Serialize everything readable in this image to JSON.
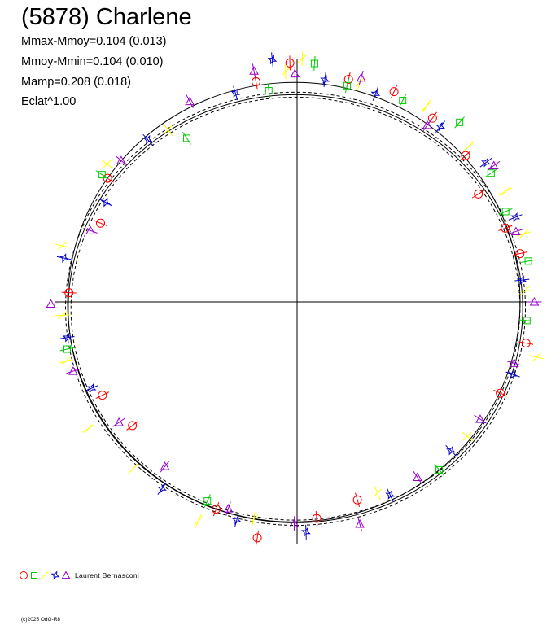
{
  "title": "(5878) Charlene",
  "stats": [
    "Mmax-Mmoy=0.104 (0.013)",
    "Mmoy-Mmin=0.104 (0.010)",
    "Mamp=0.208 (0.018)",
    "Eclat^1.00"
  ],
  "legend": {
    "author": "Laurent Bernasconi",
    "symbols": [
      {
        "shape": "circle",
        "color": "#ff0000"
      },
      {
        "shape": "square",
        "color": "#00cc00"
      },
      {
        "shape": "lightning",
        "color": "#ffff00"
      },
      {
        "shape": "star",
        "color": "#0000cc"
      },
      {
        "shape": "triangle",
        "color": "#9900cc"
      }
    ]
  },
  "footer": "(c)2025 OdG-R8",
  "chart_data": {
    "type": "scatter",
    "coordinate_system": "polar-phase",
    "grid": false,
    "mean_radius": 1.0,
    "model_curves": [
      "solid",
      "dashed-inner",
      "dashed-outer",
      "solid-reference-circle"
    ],
    "series": [
      {
        "shape": "circle",
        "color": "#ff0000",
        "points": [
          [
            0.22,
            1.02
          ],
          [
            0.35,
            0.99
          ],
          [
            0.55,
            0.95
          ],
          [
            0.73,
            1.01
          ],
          [
            0.95,
            1.04
          ],
          [
            1.15,
            1.06
          ],
          [
            1.35,
            1.05
          ],
          [
            1.6,
            1.1
          ],
          [
            1.75,
            1.03
          ],
          [
            2.55,
            1.02
          ],
          [
            2.75,
            0.95
          ],
          [
            3.1,
            1.02
          ],
          [
            3.6,
            0.97
          ],
          [
            3.8,
            0.93
          ],
          [
            4.35,
            1.02
          ],
          [
            4.55,
            1.1
          ],
          [
            4.8,
            1.0
          ],
          [
            5.0,
            0.95
          ],
          [
            5.85,
            1.0
          ],
          [
            6.1,
            1.04
          ]
        ]
      },
      {
        "shape": "square",
        "color": "#00cc00",
        "points": [
          [
            0.18,
            1.05
          ],
          [
            0.42,
            1.02
          ],
          [
            0.6,
            1.05
          ],
          [
            0.85,
            1.1
          ],
          [
            1.1,
            1.04
          ],
          [
            1.35,
            1.02
          ],
          [
            1.5,
            1.1
          ],
          [
            1.7,
            0.98
          ],
          [
            2.15,
            0.9
          ],
          [
            2.55,
            1.05
          ],
          [
            3.35,
            1.05
          ],
          [
            4.3,
            1.0
          ],
          [
            5.4,
            1.0
          ],
          [
            6.2,
            1.03
          ]
        ]
      },
      {
        "shape": "lightning",
        "color": "#ffff00",
        "points": [
          [
            0.05,
            1.02
          ],
          [
            0.3,
            1.06
          ],
          [
            0.5,
            1.06
          ],
          [
            0.75,
            1.05
          ],
          [
            1.0,
            1.07
          ],
          [
            1.3,
            1.05
          ],
          [
            1.55,
            1.12
          ],
          [
            1.62,
            1.06
          ],
          [
            2.2,
            0.98
          ],
          [
            2.5,
            1.06
          ],
          [
            2.9,
            1.08
          ],
          [
            3.2,
            1.05
          ],
          [
            3.4,
            1.07
          ],
          [
            3.7,
            1.1
          ],
          [
            3.95,
            1.06
          ],
          [
            4.3,
            1.1
          ],
          [
            4.52,
            1.02
          ],
          [
            5.1,
            0.95
          ],
          [
            5.6,
            0.98
          ],
          [
            6.05,
            1.1
          ]
        ]
      },
      {
        "shape": "star",
        "color": "#0000cc",
        "points": [
          [
            0.1,
            1.01
          ],
          [
            0.38,
            1.05
          ],
          [
            0.65,
            1.06
          ],
          [
            0.9,
            1.03
          ],
          [
            1.22,
            1.02
          ],
          [
            1.45,
            1.03
          ],
          [
            1.67,
            1.12
          ],
          [
            1.85,
            1.0
          ],
          [
            2.3,
            1.0
          ],
          [
            2.65,
            0.97
          ],
          [
            2.95,
            1.06
          ],
          [
            3.3,
            1.04
          ],
          [
            3.55,
            1.0
          ],
          [
            4.1,
            1.05
          ],
          [
            4.45,
            1.04
          ],
          [
            4.75,
            1.06
          ],
          [
            5.15,
            0.98
          ],
          [
            5.5,
            0.97
          ],
          [
            5.95,
            1.02
          ]
        ]
      },
      {
        "shape": "triangle",
        "color": "#9900cc",
        "points": [
          [
            0.0,
            1.06
          ],
          [
            0.32,
            1.03
          ],
          [
            0.62,
            1.08
          ],
          [
            0.95,
            1.0
          ],
          [
            1.3,
            1.07
          ],
          [
            1.58,
            1.05
          ],
          [
            1.75,
            1.08
          ],
          [
            2.05,
            1.04
          ],
          [
            2.45,
            1.02
          ],
          [
            2.8,
            0.98
          ],
          [
            3.15,
            1.1
          ],
          [
            3.45,
            1.05
          ],
          [
            3.75,
            0.97
          ],
          [
            4.05,
            0.96
          ],
          [
            4.4,
            1.0
          ],
          [
            4.7,
            1.02
          ],
          [
            4.98,
            1.06
          ],
          [
            5.3,
            0.97
          ],
          [
            5.7,
            0.98
          ],
          [
            6.0,
            1.01
          ]
        ]
      }
    ]
  }
}
